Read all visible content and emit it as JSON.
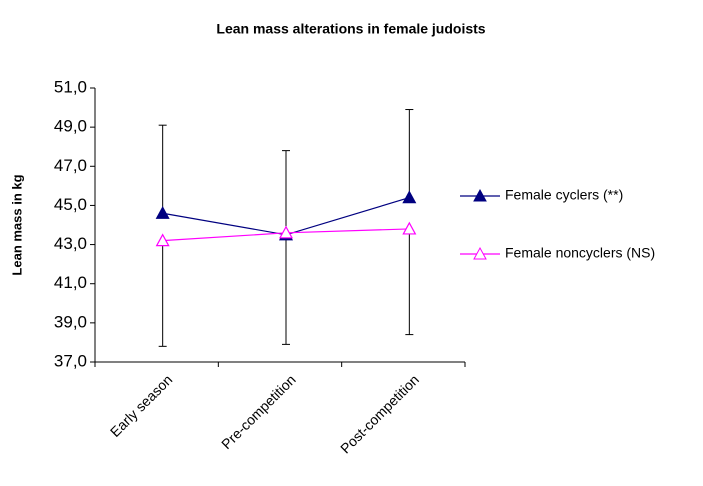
{
  "chart_data": {
    "type": "line",
    "title": "Lean mass alterations in female judoists",
    "y_label": "Lean mass in kg",
    "categories": [
      "Early season",
      "Pre-competition",
      "Post-competition"
    ],
    "series": [
      {
        "name": "Female cyclers (**)",
        "color": "#000080",
        "marker": "filled-triangle",
        "values": [
          44.6,
          43.5,
          45.4
        ],
        "errors": [
          4.5,
          4.3,
          4.5
        ],
        "error_direction": "plus"
      },
      {
        "name": "Female noncyclers (NS)",
        "color": "#ff00ff",
        "marker": "open-triangle",
        "values": [
          43.2,
          43.6,
          43.8
        ],
        "errors": [
          5.4,
          5.7,
          5.4
        ],
        "error_direction": "minus"
      }
    ],
    "ylim": [
      37,
      51
    ],
    "yticks": [
      {
        "value": 37,
        "label": "37,0"
      },
      {
        "value": 39,
        "label": "39,0"
      },
      {
        "value": 41,
        "label": "41,0"
      },
      {
        "value": 43,
        "label": "43,0"
      },
      {
        "value": 45,
        "label": "45,0"
      },
      {
        "value": 47,
        "label": "47,0"
      },
      {
        "value": 49,
        "label": "49,0"
      },
      {
        "value": 51,
        "label": "51,0"
      }
    ],
    "grid": false,
    "legend": "right"
  }
}
